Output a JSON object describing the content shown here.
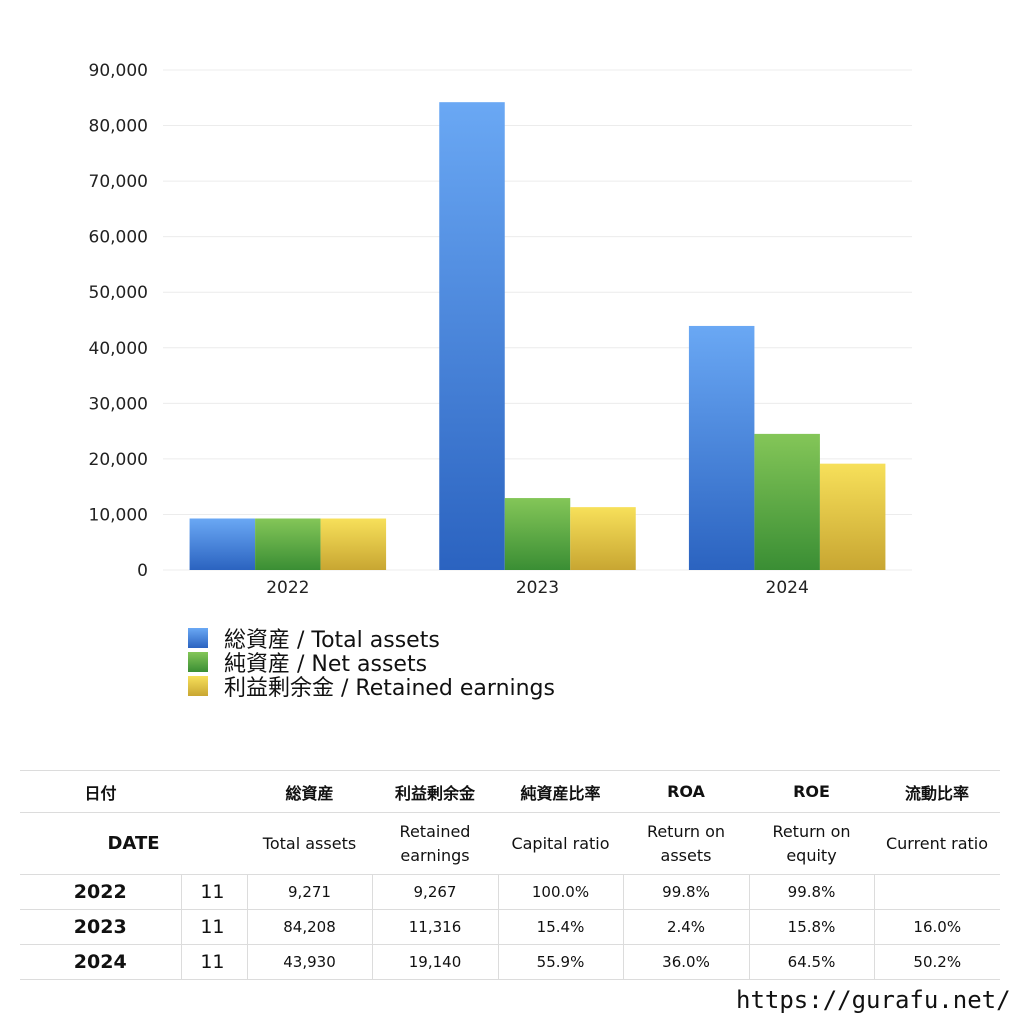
{
  "chart_data": {
    "type": "bar",
    "categories": [
      "2022",
      "2023",
      "2024"
    ],
    "series": [
      {
        "name": "総資産 / Total assets",
        "values": [
          9271,
          84208,
          43930
        ],
        "color_top": "#6aa8f4",
        "color_bottom": "#2b63c0"
      },
      {
        "name": "純資産 / Net assets",
        "values": [
          9271,
          12950,
          24500
        ],
        "color_top": "#84c658",
        "color_bottom": "#3a8e34"
      },
      {
        "name": "利益剰余金 / Retained earnings",
        "values": [
          9267,
          11316,
          19140
        ],
        "color_top": "#f7e05a",
        "color_bottom": "#c8a632"
      }
    ],
    "ylim": [
      0,
      90000
    ],
    "yticks": [
      "0",
      "10,000",
      "20,000",
      "30,000",
      "40,000",
      "50,000",
      "60,000",
      "70,000",
      "80,000",
      "90,000"
    ],
    "grid": true,
    "legend_position": "bottom-left"
  },
  "table": {
    "header1": [
      "日付",
      "",
      "総資産",
      "利益剰余金",
      "純資産比率",
      "ROA",
      "ROE",
      "流動比率"
    ],
    "header2": [
      "DATE",
      "Total assets",
      "Retained earnings",
      "Capital ratio",
      "Return on assets",
      "Return on equity",
      "Current ratio"
    ],
    "rows": [
      {
        "year": "2022",
        "month": "11",
        "total_assets": "9,271",
        "retained": "9,267",
        "capital_ratio": "100.0%",
        "roa": "99.8%",
        "roe": "99.8%",
        "current_ratio": ""
      },
      {
        "year": "2023",
        "month": "11",
        "total_assets": "84,208",
        "retained": "11,316",
        "capital_ratio": "15.4%",
        "roa": "2.4%",
        "roe": "15.8%",
        "current_ratio": "16.0%"
      },
      {
        "year": "2024",
        "month": "11",
        "total_assets": "43,930",
        "retained": "19,140",
        "capital_ratio": "55.9%",
        "roa": "36.0%",
        "roe": "64.5%",
        "current_ratio": "50.2%"
      }
    ]
  },
  "site_url": "https://gurafu.net/"
}
